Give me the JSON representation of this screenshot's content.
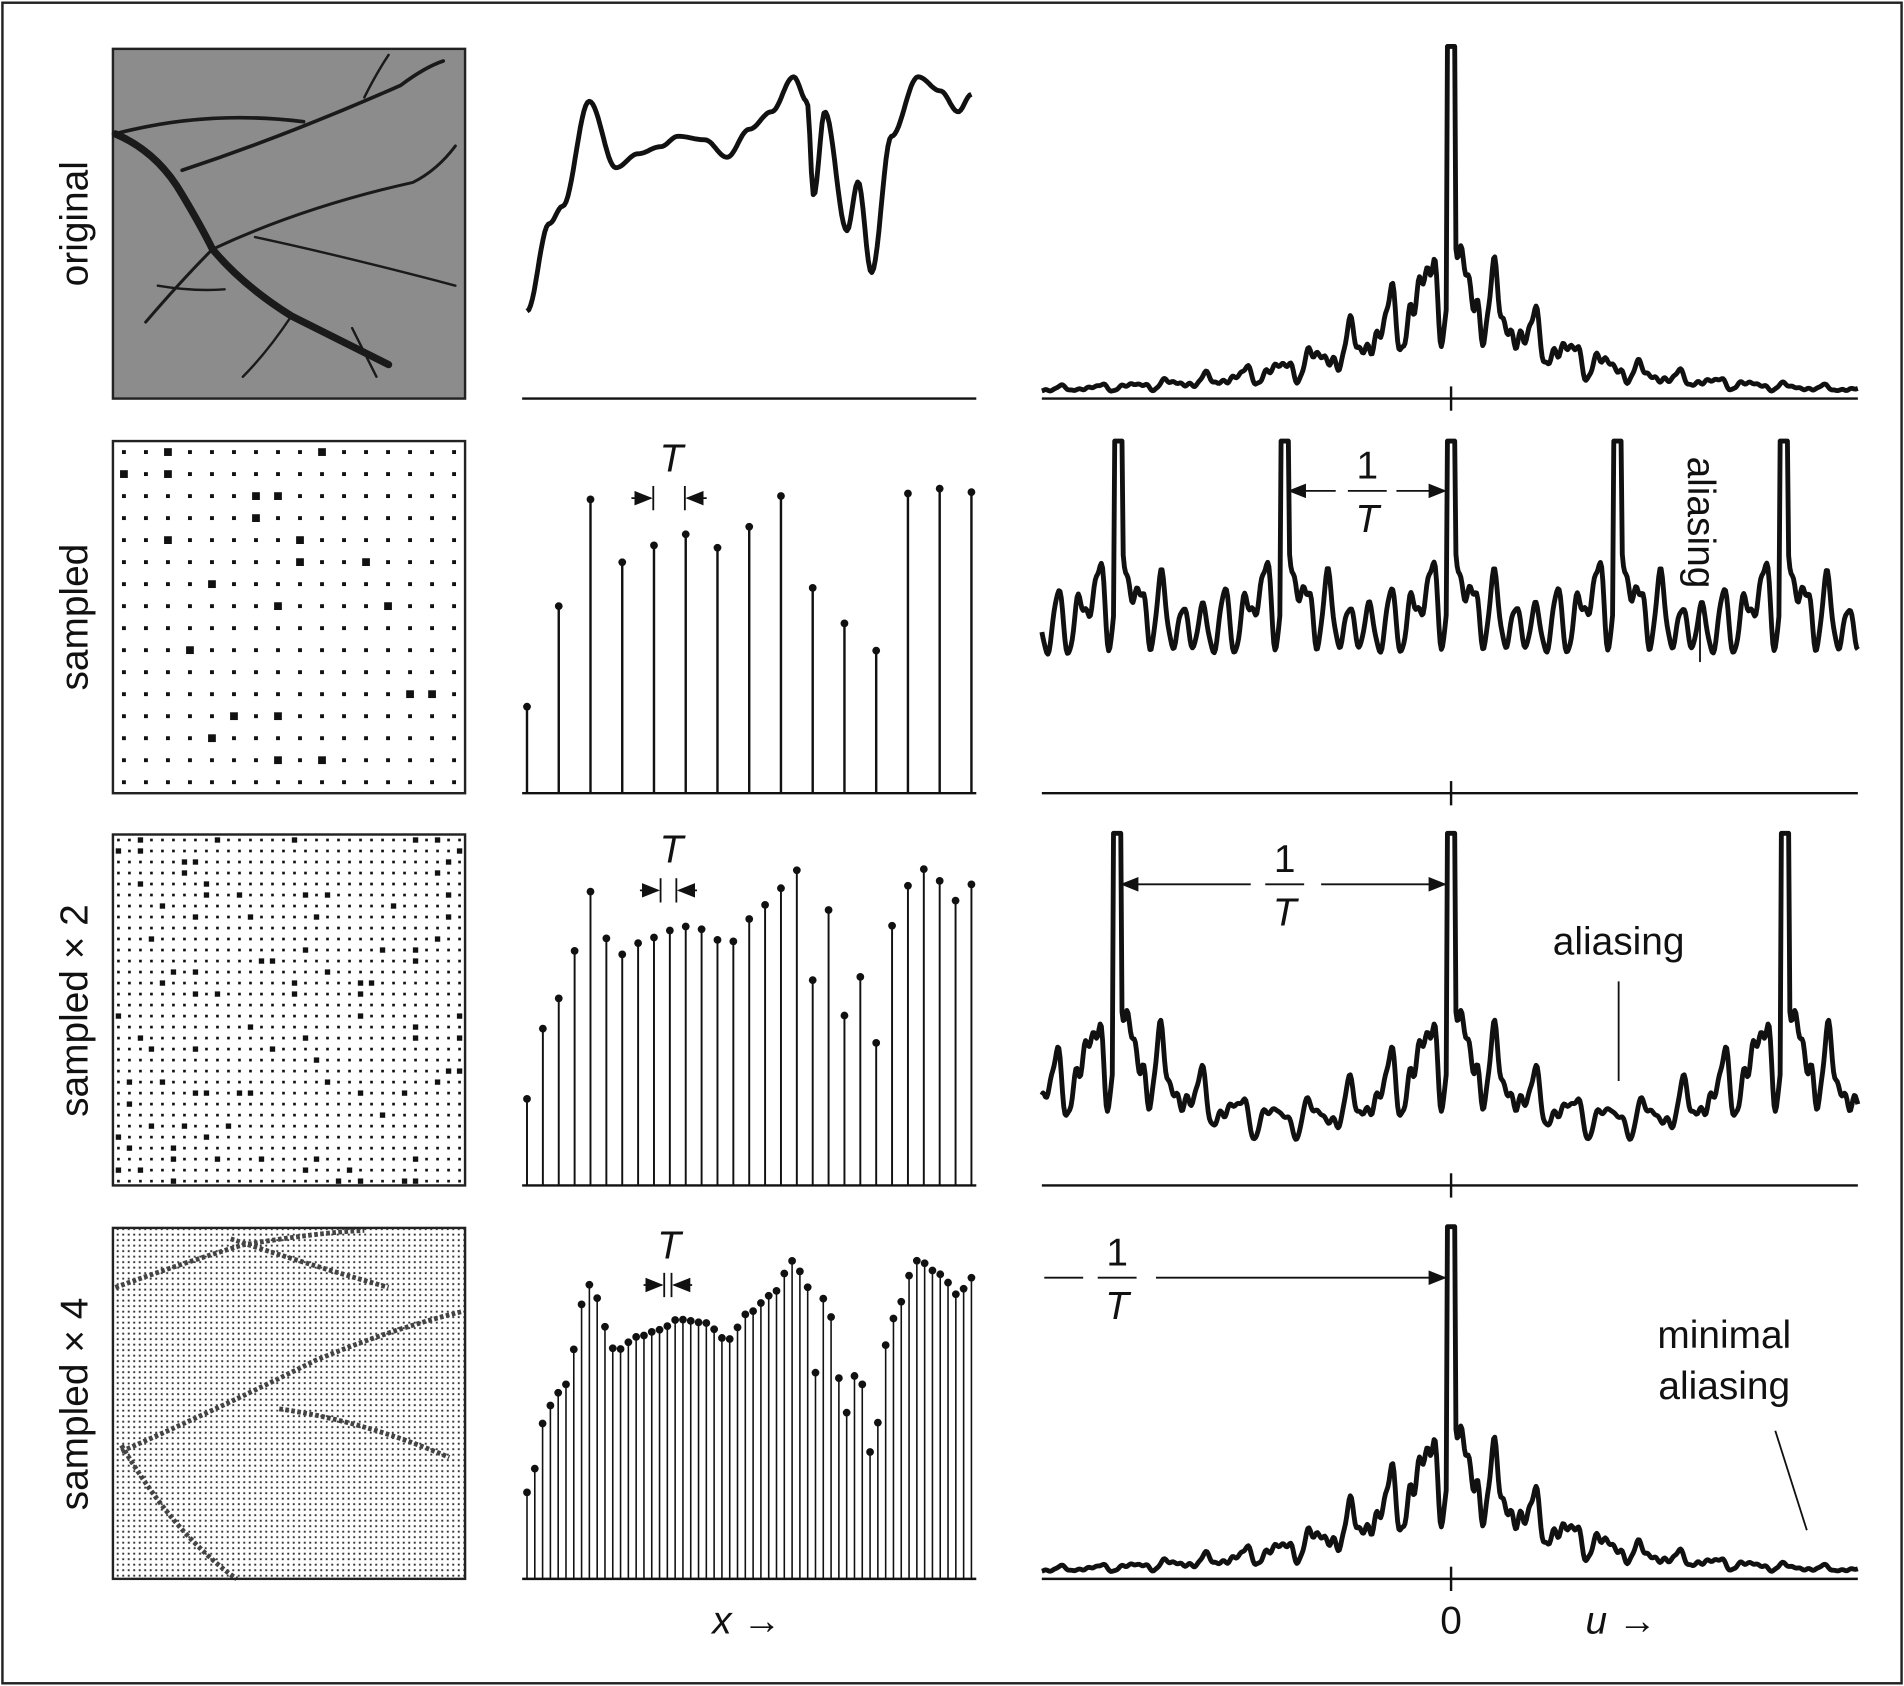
{
  "row_labels": [
    "original",
    "sampled",
    "sampled × 2",
    "sampled × 4"
  ],
  "period_labels": [
    "T",
    "T",
    "T"
  ],
  "frequency_labels": [
    {
      "numerator": "1",
      "denominator": "T"
    },
    {
      "numerator": "1",
      "denominator": "T"
    },
    {
      "numerator": "1",
      "denominator": "T"
    }
  ],
  "annotations": {
    "aliasing": [
      "aliasing",
      "aliasing"
    ],
    "minimal_aliasing": [
      "minimal",
      "aliasing"
    ]
  },
  "axis": {
    "x": "x →",
    "origin": "0",
    "u": "u →"
  }
}
